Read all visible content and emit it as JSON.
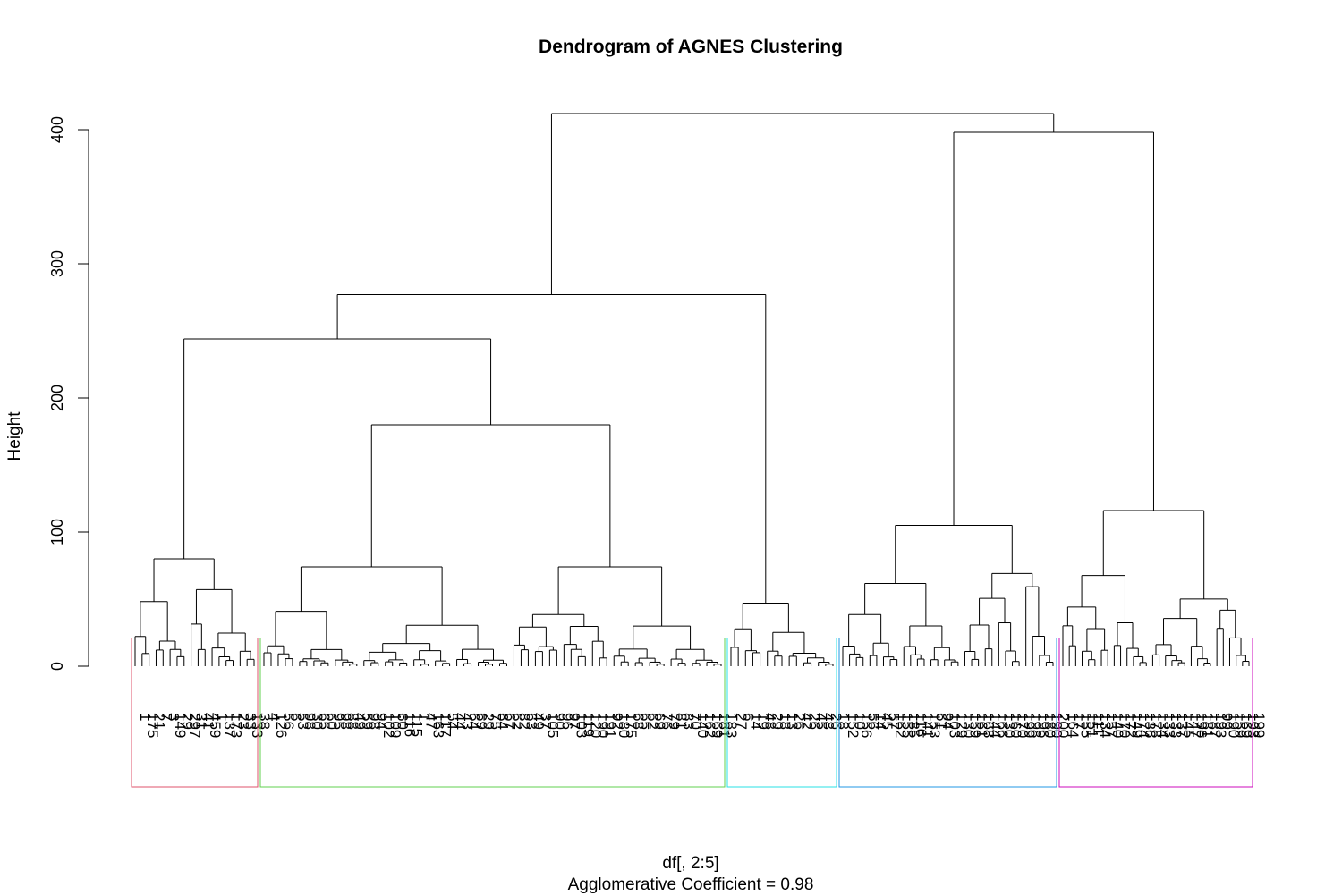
{
  "chart_data": {
    "type": "dendrogram",
    "title": "Dendrogram of AGNES Clustering",
    "xlabel": "df[, 2:5]",
    "subtitle": "Agglomerative Coefficient =  0.98",
    "ylabel": "Height",
    "ylim": [
      0,
      420
    ],
    "yticks": [
      0,
      100,
      200,
      300,
      400
    ],
    "grid": false,
    "legend": "none",
    "clusters": [
      {
        "color": "#DF536B",
        "height": 80,
        "leaves": [
          "1",
          "175",
          "21",
          "7",
          "3",
          "149",
          "29",
          "297",
          "31",
          "41",
          "459",
          "1",
          "137",
          "173",
          "23",
          "33",
          "133",
          "38"
        ]
      },
      {
        "color": "#61D04F",
        "height": 180,
        "leaves": [
          "4",
          "126",
          "56",
          "6",
          "53",
          "98",
          "30",
          "65",
          "60",
          "95",
          "98",
          "88",
          "49",
          "59",
          "98",
          "94",
          "102",
          "109",
          "60",
          "116",
          "115",
          "1",
          "47",
          "163",
          "117",
          "54",
          "44",
          "43",
          "64",
          "69",
          "29",
          "75",
          "64",
          "67",
          "62",
          "82",
          "63",
          "49",
          "37",
          "105",
          "90",
          "96",
          "97",
          "103",
          "119",
          "120",
          "190",
          "191",
          "92",
          "180",
          "175",
          "68",
          "65",
          "62",
          "69",
          "76",
          "79",
          "81",
          "83",
          "70",
          "140",
          "162",
          "169",
          "181",
          "183"
        ]
      },
      {
        "color": "#28E2E5",
        "height": 47,
        "leaves": [
          "27",
          "6",
          "14",
          "19",
          "48",
          "29",
          "18",
          "13",
          "26",
          "42",
          "26",
          "45",
          "48",
          "26",
          "18"
        ]
      },
      {
        "color": "#2297E6",
        "height": 105,
        "leaves": [
          "152",
          "10",
          "156",
          "56",
          "14",
          "45",
          "57",
          "162",
          "155",
          "185",
          "116",
          "141",
          "153",
          "61",
          "94",
          "103",
          "129",
          "130",
          "159",
          "161",
          "168",
          "144",
          "166",
          "130",
          "160",
          "170",
          "199",
          "198",
          "196",
          "180",
          "190",
          "200"
        ]
      },
      {
        "color": "#CD0BBC",
        "height": 116,
        "leaves": [
          "164",
          "17",
          "155",
          "151",
          "111",
          "134",
          "157",
          "140",
          "170",
          "172",
          "149",
          "174",
          "136",
          "178",
          "134",
          "133",
          "133",
          "137",
          "145",
          "147",
          "196",
          "181",
          "187",
          "193",
          "99",
          "190",
          "159",
          "169",
          "193",
          "199"
        ]
      }
    ],
    "top_merges": [
      {
        "height": 412,
        "left": "clusters 1-3",
        "right": "clusters 4-5"
      },
      {
        "height": 398,
        "left": "cluster 4",
        "right": "cluster 5"
      },
      {
        "height": 277,
        "left": "clusters 1-2",
        "right": "cluster 3"
      },
      {
        "height": 244,
        "left": "cluster 1",
        "right": "cluster 2"
      }
    ],
    "cut_height": 21
  }
}
